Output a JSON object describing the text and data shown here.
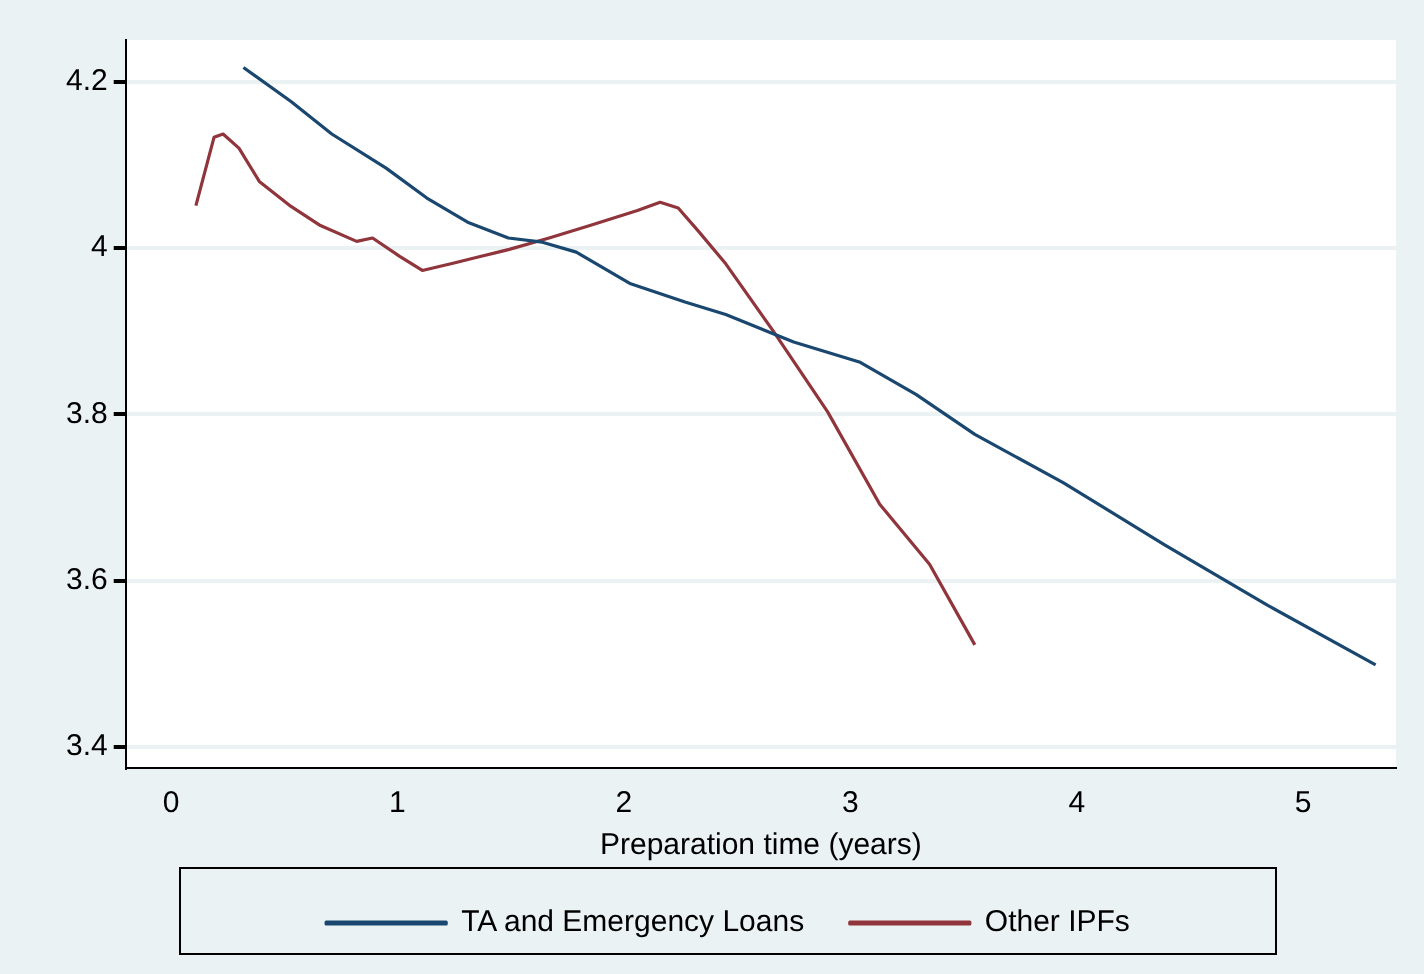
{
  "chart_data": {
    "type": "line",
    "xlabel": "Preparation time (years)",
    "xlim": [
      -0.2,
      5.41
    ],
    "xticks": [
      0,
      1,
      2,
      3,
      4,
      5
    ],
    "ylim": [
      3.375,
      4.25
    ],
    "yticks": [
      3.4,
      3.6,
      3.8,
      4,
      4.2
    ],
    "grid": "y",
    "legend": "bottom",
    "marker": "none",
    "line_style": "solid",
    "series": [
      {
        "name": "TA and Emergency Loans",
        "color": "#1a476f",
        "x": [
          0.32,
          0.53,
          0.71,
          0.95,
          1.13,
          1.31,
          1.49,
          1.64,
          1.79,
          2.03,
          2.27,
          2.45,
          2.75,
          3.04,
          3.29,
          3.55,
          3.94,
          4.39,
          4.84,
          5.32
        ],
        "values": [
          4.217,
          4.176,
          4.137,
          4.096,
          4.06,
          4.031,
          4.012,
          4.007,
          3.995,
          3.957,
          3.935,
          3.92,
          3.887,
          3.863,
          3.824,
          3.776,
          3.718,
          3.643,
          3.571,
          3.499
        ]
      },
      {
        "name": "Other IPFs",
        "color": "#90353b",
        "x": [
          0.11,
          0.19,
          0.23,
          0.3,
          0.39,
          0.53,
          0.66,
          0.82,
          0.89,
          1.01,
          1.11,
          1.25,
          1.37,
          1.49,
          1.67,
          1.85,
          2.06,
          2.16,
          2.24,
          2.33,
          2.45,
          2.66,
          2.9,
          3.13,
          3.35,
          3.55
        ],
        "values": [
          4.051,
          4.133,
          4.137,
          4.12,
          4.08,
          4.05,
          4.027,
          4.008,
          4.012,
          3.99,
          3.973,
          3.982,
          3.99,
          3.998,
          4.012,
          4.027,
          4.045,
          4.055,
          4.048,
          4.02,
          3.981,
          3.9,
          3.803,
          3.692,
          3.62,
          3.523
        ]
      }
    ]
  }
}
